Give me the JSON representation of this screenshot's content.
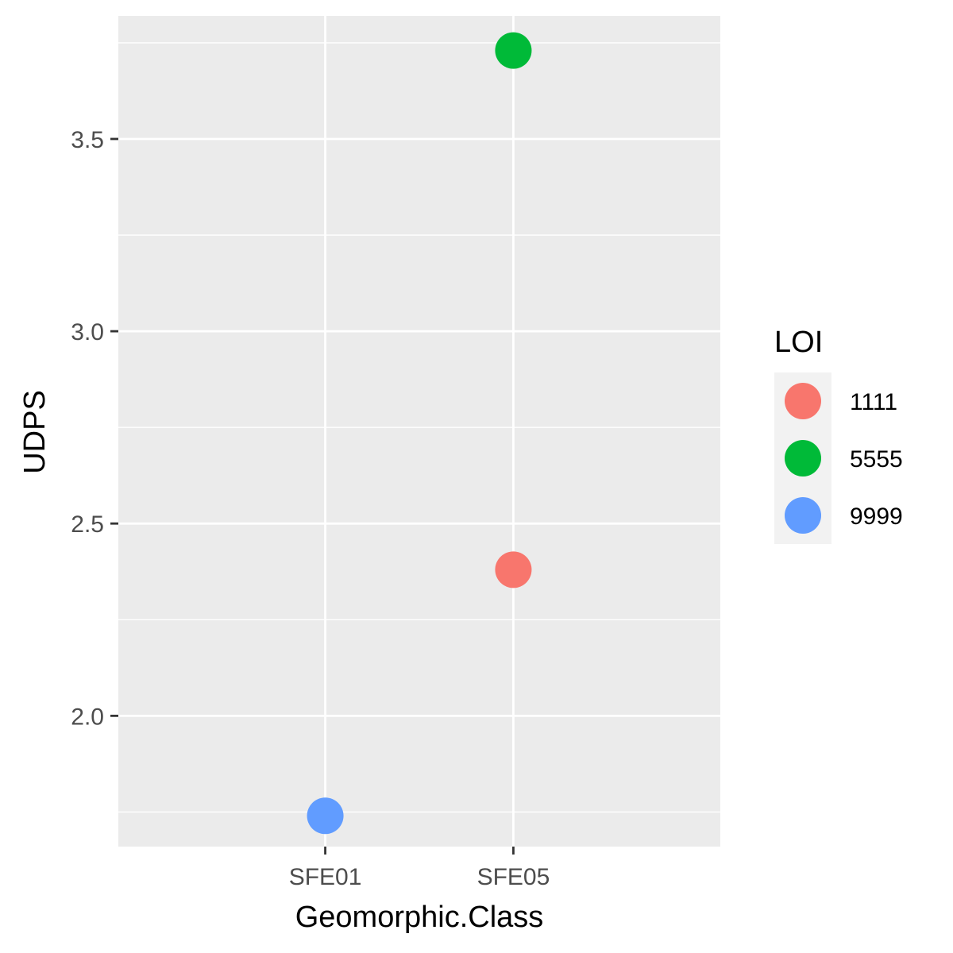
{
  "chart_data": {
    "type": "scatter",
    "xlabel": "Geomorphic.Class",
    "ylabel": "UDPS",
    "categories": [
      "SFE01",
      "SFE05"
    ],
    "ylim": [
      1.66,
      3.82
    ],
    "y_ticks": [
      2.0,
      2.5,
      3.0,
      3.5
    ],
    "y_tick_labels": [
      "2.0",
      "2.5",
      "3.0",
      "3.5"
    ],
    "grid": true,
    "legend": {
      "title": "LOI",
      "position": "right",
      "entries": [
        {
          "label": "1111",
          "color": "#F8766D"
        },
        {
          "label": "5555",
          "color": "#00BA38"
        },
        {
          "label": "9999",
          "color": "#619CFF"
        }
      ]
    },
    "series": [
      {
        "name": "1111",
        "color": "#F8766D",
        "points": [
          {
            "x": "SFE05",
            "y": 2.38
          }
        ]
      },
      {
        "name": "5555",
        "color": "#00BA38",
        "points": [
          {
            "x": "SFE05",
            "y": 3.73
          }
        ]
      },
      {
        "name": "9999",
        "color": "#619CFF",
        "points": [
          {
            "x": "SFE01",
            "y": 1.74
          }
        ]
      }
    ],
    "colors": {
      "panel_background": "#EBEBEB",
      "grid_line": "#FFFFFF",
      "tick_text": "#4D4D4D",
      "legend_key_background": "#F2F2F2"
    }
  }
}
